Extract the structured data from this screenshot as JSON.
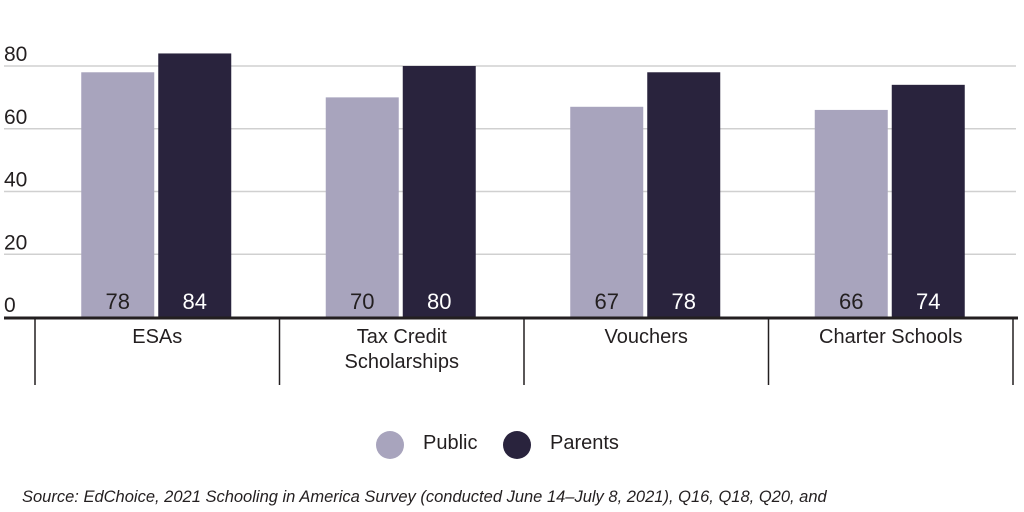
{
  "chart_data": {
    "type": "bar",
    "categories": [
      [
        "ESAs"
      ],
      [
        "Tax Credit",
        "Scholarships"
      ],
      [
        "Vouchers"
      ],
      [
        "Charter Schools"
      ]
    ],
    "series": [
      {
        "name": "Public",
        "color": "#a8a4bd",
        "label_color": "#231f20",
        "values": [
          78,
          70,
          67,
          66
        ]
      },
      {
        "name": "Parents",
        "color": "#29233d",
        "label_color": "#ffffff",
        "values": [
          84,
          80,
          78,
          74
        ]
      }
    ],
    "yticks": [
      0,
      20,
      40,
      60,
      80
    ],
    "ylim": [
      0,
      80
    ],
    "grid": true,
    "legend_position": "bottom-center",
    "source": "Source: EdChoice, 2021 Schooling in America Survey (conducted June 14–July 8, 2021), Q16, Q18, Q20, and"
  }
}
